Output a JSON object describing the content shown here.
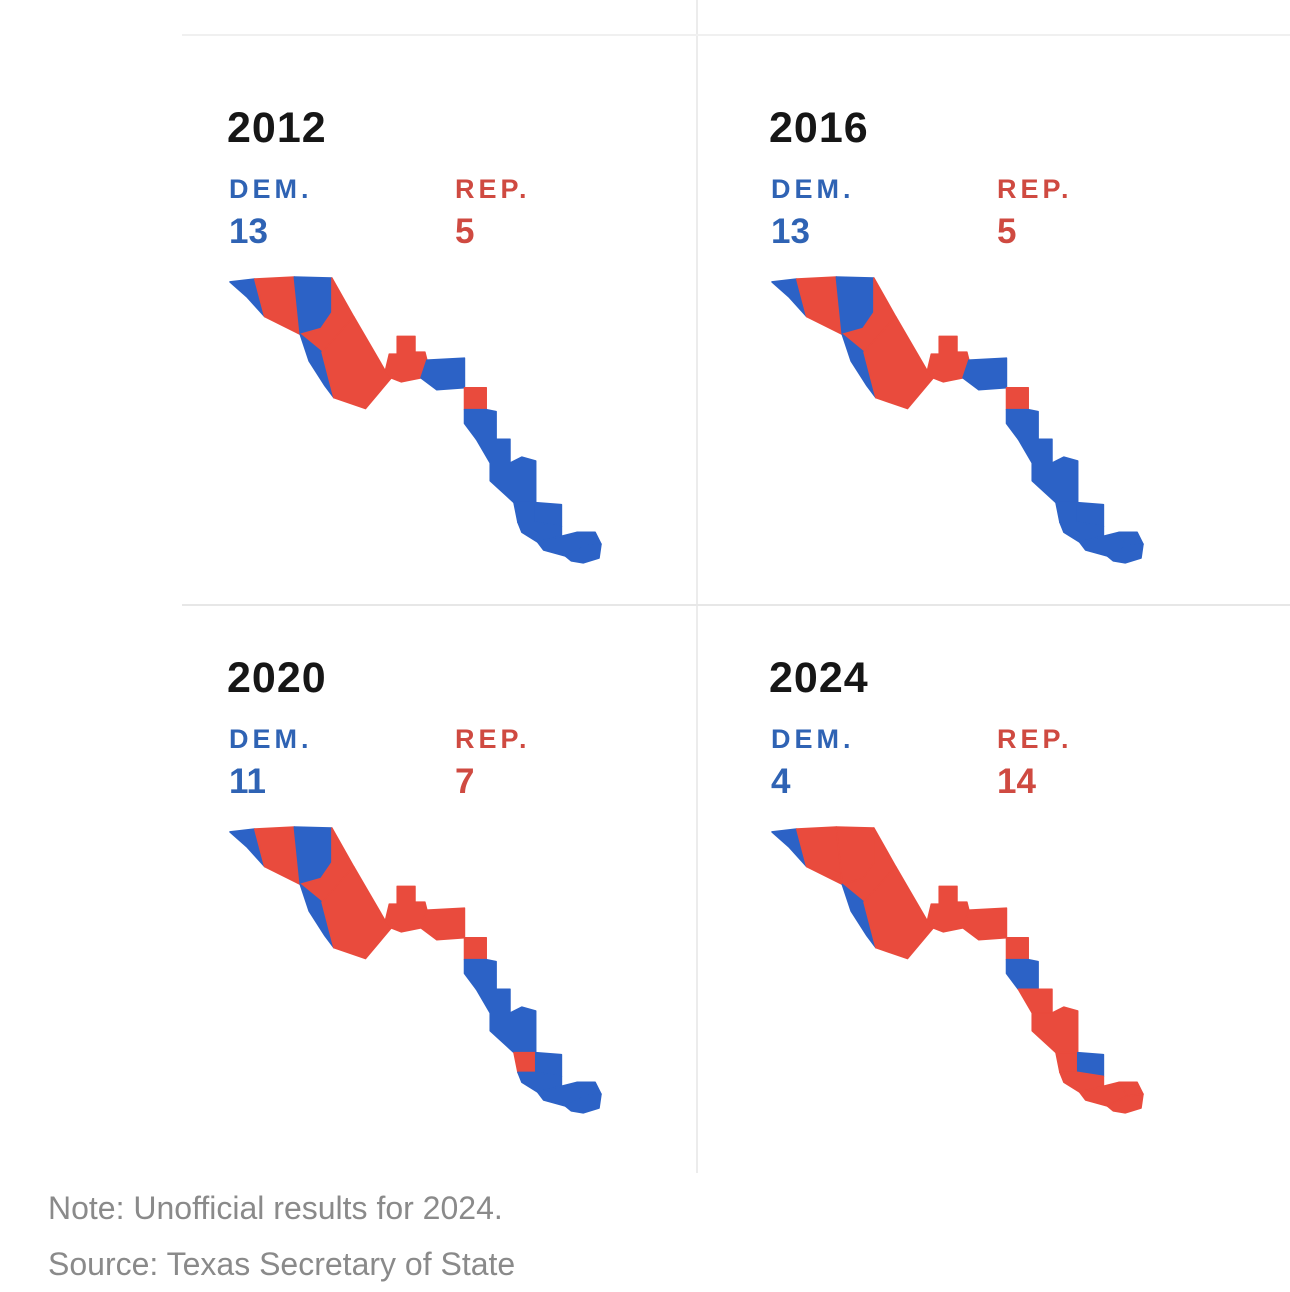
{
  "colors": {
    "map_dem": "#2c62c6",
    "map_rep": "#e94b3d",
    "dem_text": "#2f63b4",
    "rep_text": "#cf4a41",
    "year_text": "#161616",
    "note_text": "#8a8a8a",
    "divider": "#ececec",
    "divider_light": "#f0f0f0"
  },
  "panels": [
    {
      "year": "2012",
      "dem_label": "DEM.",
      "dem_count": "13",
      "rep_label": "REP.",
      "rep_count": "5",
      "regions": [
        "D",
        "R",
        "D",
        "R",
        "D",
        "R",
        "R",
        "D",
        "R",
        "D",
        "D",
        "D",
        "D",
        "D",
        "D",
        "D",
        "D",
        "D"
      ]
    },
    {
      "year": "2016",
      "dem_label": "DEM.",
      "dem_count": "13",
      "rep_label": "REP.",
      "rep_count": "5",
      "regions": [
        "D",
        "R",
        "D",
        "R",
        "D",
        "R",
        "R",
        "D",
        "R",
        "D",
        "D",
        "D",
        "D",
        "D",
        "D",
        "D",
        "D",
        "D"
      ]
    },
    {
      "year": "2020",
      "dem_label": "DEM.",
      "dem_count": "11",
      "rep_label": "REP.",
      "rep_count": "7",
      "regions": [
        "D",
        "R",
        "D",
        "R",
        "D",
        "R",
        "R",
        "R",
        "R",
        "D",
        "D",
        "D",
        "R",
        "D",
        "D",
        "D",
        "D",
        "D"
      ]
    },
    {
      "year": "2024",
      "dem_label": "DEM.",
      "dem_count": "4",
      "rep_label": "REP.",
      "rep_count": "14",
      "regions": [
        "D",
        "R",
        "R",
        "R",
        "D",
        "R",
        "R",
        "R",
        "R",
        "D",
        "R",
        "R",
        "R",
        "D",
        "R",
        "R",
        "R",
        "R"
      ]
    }
  ],
  "footnote": {
    "note": "Note: Unofficial results for 2024.",
    "source": "Source: Texas Secretary of State"
  },
  "chart_data": {
    "type": "choropleth_small_multiples",
    "years": [
      "2012",
      "2016",
      "2020",
      "2024"
    ],
    "series": [
      {
        "name": "DEM.",
        "values": [
          13,
          13,
          11,
          4
        ],
        "color": "#2f63b4"
      },
      {
        "name": "REP.",
        "values": [
          5,
          5,
          7,
          14
        ],
        "color": "#cf4a41"
      }
    ],
    "region_party_west_to_east_by_year": {
      "2012": [
        "D",
        "R",
        "D",
        "R",
        "D",
        "R",
        "R",
        "D",
        "R",
        "D",
        "D",
        "D",
        "D",
        "D",
        "D",
        "D",
        "D",
        "D"
      ],
      "2016": [
        "D",
        "R",
        "D",
        "R",
        "D",
        "R",
        "R",
        "D",
        "R",
        "D",
        "D",
        "D",
        "D",
        "D",
        "D",
        "D",
        "D",
        "D"
      ],
      "2020": [
        "D",
        "R",
        "D",
        "R",
        "D",
        "R",
        "R",
        "R",
        "R",
        "D",
        "D",
        "D",
        "R",
        "D",
        "D",
        "D",
        "D",
        "D"
      ],
      "2024": [
        "D",
        "R",
        "R",
        "R",
        "D",
        "R",
        "R",
        "R",
        "R",
        "D",
        "R",
        "R",
        "R",
        "D",
        "R",
        "R",
        "R",
        "R"
      ]
    },
    "legend_position": "above each map",
    "note": "Note: Unofficial results for 2024.",
    "source": "Source: Texas Secretary of State"
  }
}
